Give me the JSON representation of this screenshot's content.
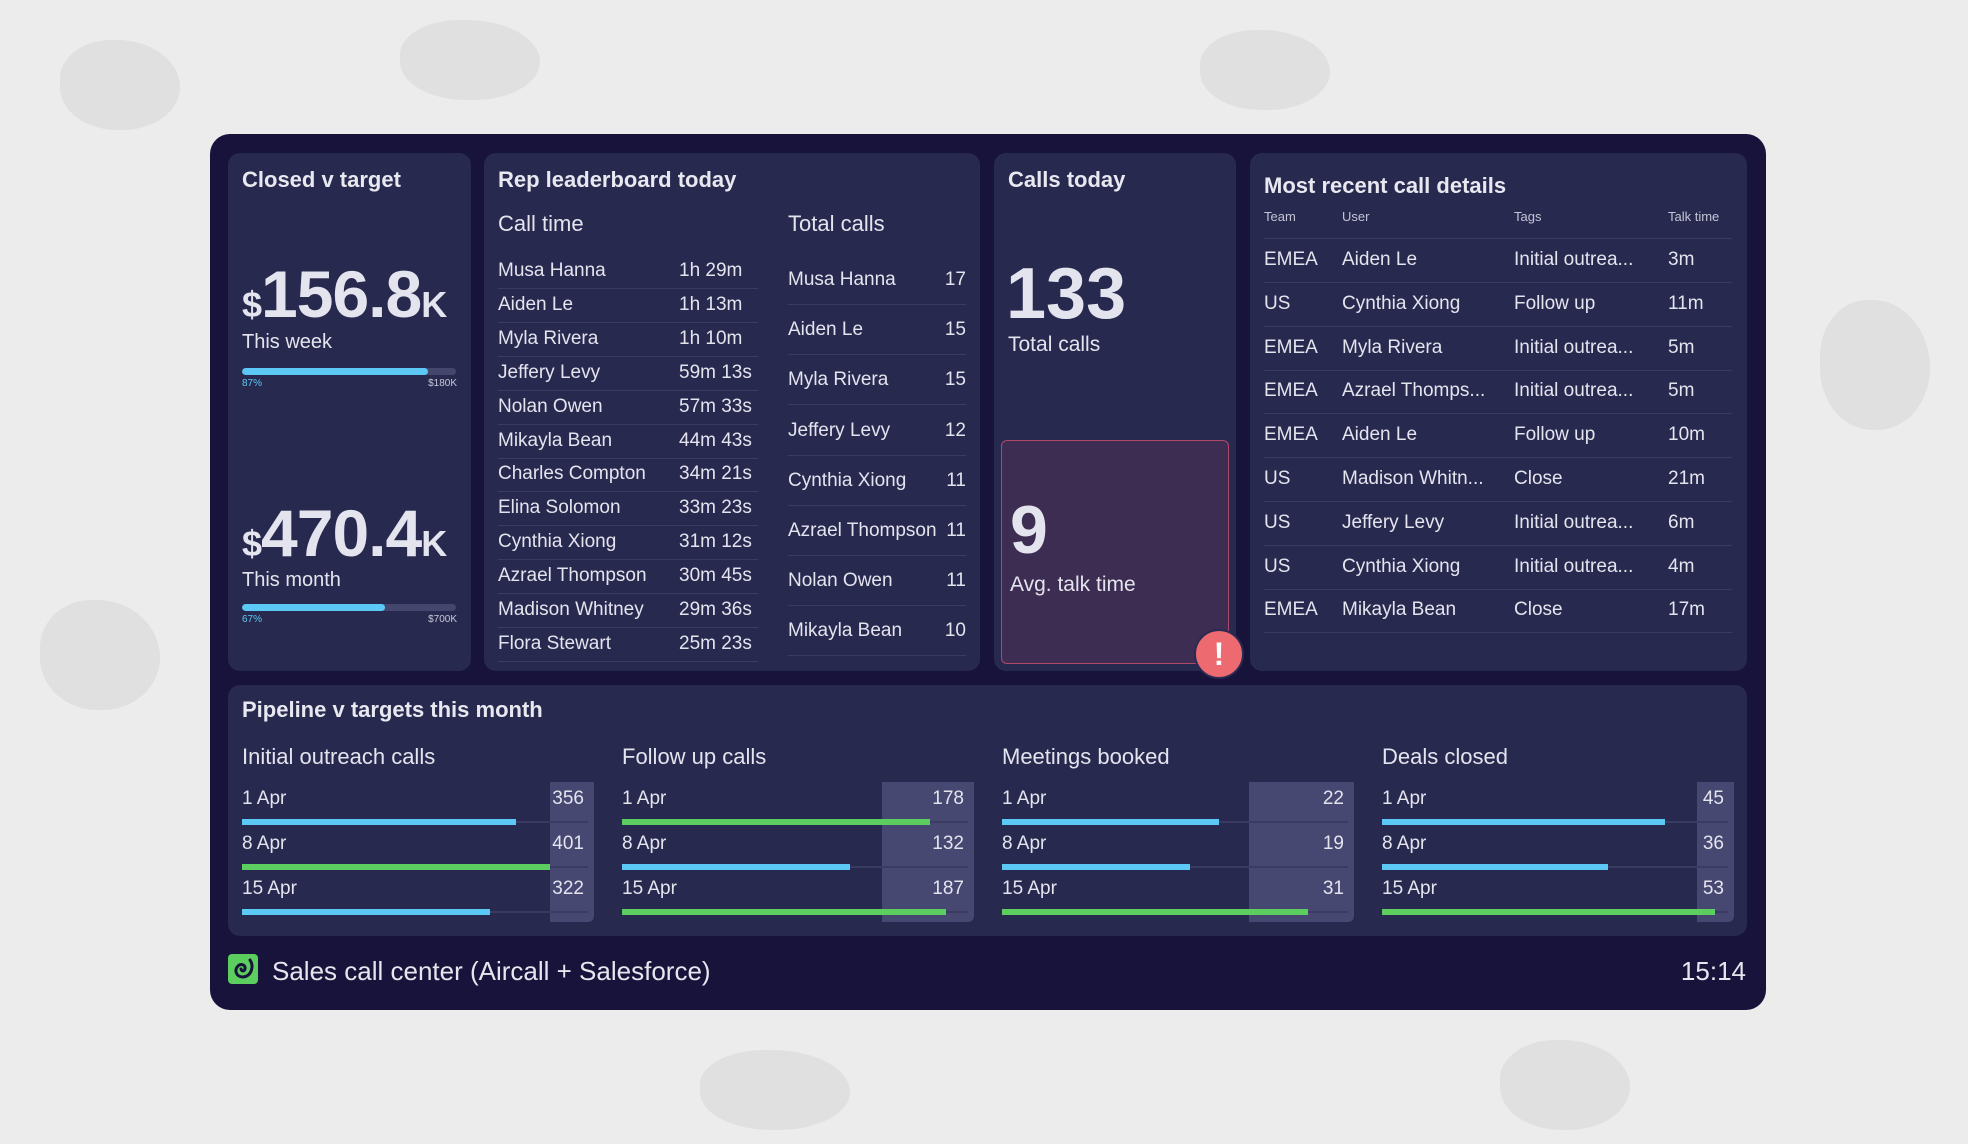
{
  "closed": {
    "title": "Closed v target",
    "week": {
      "currency": "$",
      "value": "156.8",
      "suffix": "K",
      "label": "This week",
      "percent_label": "87%",
      "percent": 87,
      "target": "$180K"
    },
    "month": {
      "currency": "$",
      "value": "470.4",
      "suffix": "K",
      "label": "This month",
      "percent_label": "67%",
      "percent": 67,
      "target": "$700K"
    }
  },
  "leaderboard": {
    "title": "Rep leaderboard today",
    "call_time": {
      "header": "Call time",
      "rows": [
        {
          "name": "Musa Hanna",
          "value": "1h 29m"
        },
        {
          "name": "Aiden Le",
          "value": "1h 13m"
        },
        {
          "name": "Myla Rivera",
          "value": "1h 10m"
        },
        {
          "name": "Jeffery Levy",
          "value": "59m 13s"
        },
        {
          "name": "Nolan Owen",
          "value": "57m 33s"
        },
        {
          "name": "Mikayla Bean",
          "value": "44m 43s"
        },
        {
          "name": "Charles Compton",
          "value": "34m 21s"
        },
        {
          "name": "Elina Solomon",
          "value": "33m 23s"
        },
        {
          "name": "Cynthia Xiong",
          "value": "31m 12s"
        },
        {
          "name": "Azrael Thompson",
          "value": "30m 45s"
        },
        {
          "name": "Madison Whitney",
          "value": "29m 36s"
        },
        {
          "name": "Flora Stewart",
          "value": "25m 23s"
        }
      ]
    },
    "total_calls": {
      "header": "Total calls",
      "rows": [
        {
          "name": "Musa Hanna",
          "value": "17"
        },
        {
          "name": "Aiden Le",
          "value": "15"
        },
        {
          "name": "Myla Rivera",
          "value": "15"
        },
        {
          "name": "Jeffery Levy",
          "value": "12"
        },
        {
          "name": "Cynthia Xiong",
          "value": "11"
        },
        {
          "name": "Azrael Thompson",
          "value": "11"
        },
        {
          "name": "Nolan Owen",
          "value": "11"
        },
        {
          "name": "Mikayla Bean",
          "value": "10"
        }
      ]
    }
  },
  "calls_today": {
    "title": "Calls today",
    "total": "133",
    "total_label": "Total calls",
    "avg": "9",
    "avg_label": "Avg. talk time",
    "alert_icon": "exclamation-icon",
    "alert_color": "#ec6a70"
  },
  "recent": {
    "title": "Most recent call details",
    "headers": [
      "Team",
      "User",
      "Tags",
      "Talk time"
    ],
    "rows": [
      [
        "EMEA",
        "Aiden Le",
        "Initial outrea...",
        "3m"
      ],
      [
        "US",
        "Cynthia Xiong",
        "Follow up",
        "11m"
      ],
      [
        "EMEA",
        "Myla Rivera",
        "Initial outrea...",
        "5m"
      ],
      [
        "EMEA",
        "Azrael Thomps...",
        "Initial outrea...",
        "5m"
      ],
      [
        "EMEA",
        "Aiden Le",
        "Follow up",
        "10m"
      ],
      [
        "US",
        "Madison Whitn...",
        "Close",
        "21m"
      ],
      [
        "US",
        "Jeffery Levy",
        "Initial outrea...",
        "6m"
      ],
      [
        "US",
        "Cynthia Xiong",
        "Initial outrea...",
        "4m"
      ],
      [
        "EMEA",
        "Mikayla Bean",
        "Close",
        "17m"
      ]
    ]
  },
  "pipeline": {
    "title": "Pipeline v targets this month",
    "colors": {
      "above_target": "#5ccd5f",
      "below_target": "#5bc8f5"
    },
    "sections": [
      {
        "title": "Initial outreach calls",
        "max": 450,
        "target": 400,
        "rows": [
          {
            "label": "1 Apr",
            "value": 356
          },
          {
            "label": "8 Apr",
            "value": 401
          },
          {
            "label": "15 Apr",
            "value": 322
          }
        ]
      },
      {
        "title": "Follow up calls",
        "max": 200,
        "target": 150,
        "rows": [
          {
            "label": "1 Apr",
            "value": 178
          },
          {
            "label": "8 Apr",
            "value": 132
          },
          {
            "label": "15 Apr",
            "value": 187
          }
        ]
      },
      {
        "title": "Meetings booked",
        "max": 35,
        "target": 25,
        "rows": [
          {
            "label": "1 Apr",
            "value": 22
          },
          {
            "label": "8 Apr",
            "value": 19
          },
          {
            "label": "15 Apr",
            "value": 31
          }
        ]
      },
      {
        "title": "Deals closed",
        "max": 55,
        "target": 50,
        "rows": [
          {
            "label": "1 Apr",
            "value": 45
          },
          {
            "label": "8 Apr",
            "value": 36
          },
          {
            "label": "15 Apr",
            "value": 53
          }
        ]
      }
    ]
  },
  "footer": {
    "logo_icon": "aircall-logo-icon",
    "title": "Sales call center (Aircall + Salesforce)",
    "time": "15:14"
  }
}
